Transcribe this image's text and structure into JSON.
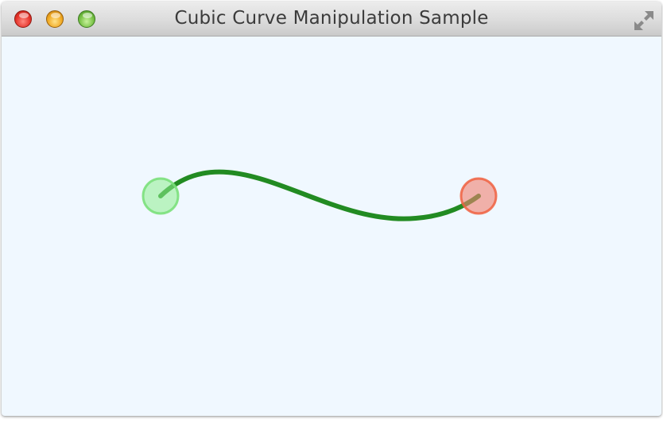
{
  "window": {
    "title": "Cubic Curve Manipulation Sample"
  },
  "controls": {
    "close": "close-icon",
    "minimize": "minimize-icon",
    "zoom": "zoom-icon",
    "fullscreen": "fullscreen-icon"
  },
  "colors": {
    "canvas_background": "#f0f8ff",
    "curve_stroke": "#228b22",
    "start_handle_fill": "#90ee90",
    "start_handle_stroke": "#7be07b",
    "end_handle_fill": "#f08070",
    "end_handle_stroke": "#f06040"
  }
}
